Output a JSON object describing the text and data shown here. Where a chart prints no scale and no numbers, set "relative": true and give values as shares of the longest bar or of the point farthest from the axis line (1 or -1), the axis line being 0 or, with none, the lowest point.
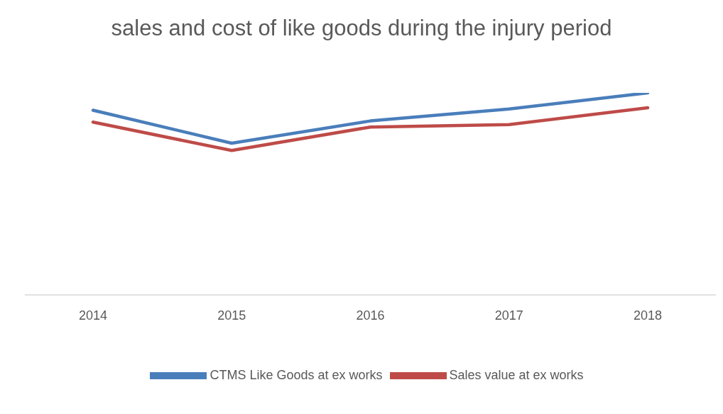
{
  "chart_data": {
    "type": "line",
    "title": "sales and cost of like goods during the injury period",
    "categories": [
      "2014",
      "2015",
      "2016",
      "2017",
      "2018"
    ],
    "relative": true,
    "legend": "bottom",
    "marker": "none",
    "line_style": "solid",
    "series": [
      {
        "name": "CTMS Like Goods at ex works",
        "color": "#4a7ebb",
        "values": [
          0.914,
          0.751,
          0.861,
          0.92,
          1
        ]
      },
      {
        "name": "Sales value at ex works",
        "color": "#be4b48",
        "values": [
          0.855,
          0.715,
          0.831,
          0.843,
          0.926
        ]
      }
    ]
  }
}
